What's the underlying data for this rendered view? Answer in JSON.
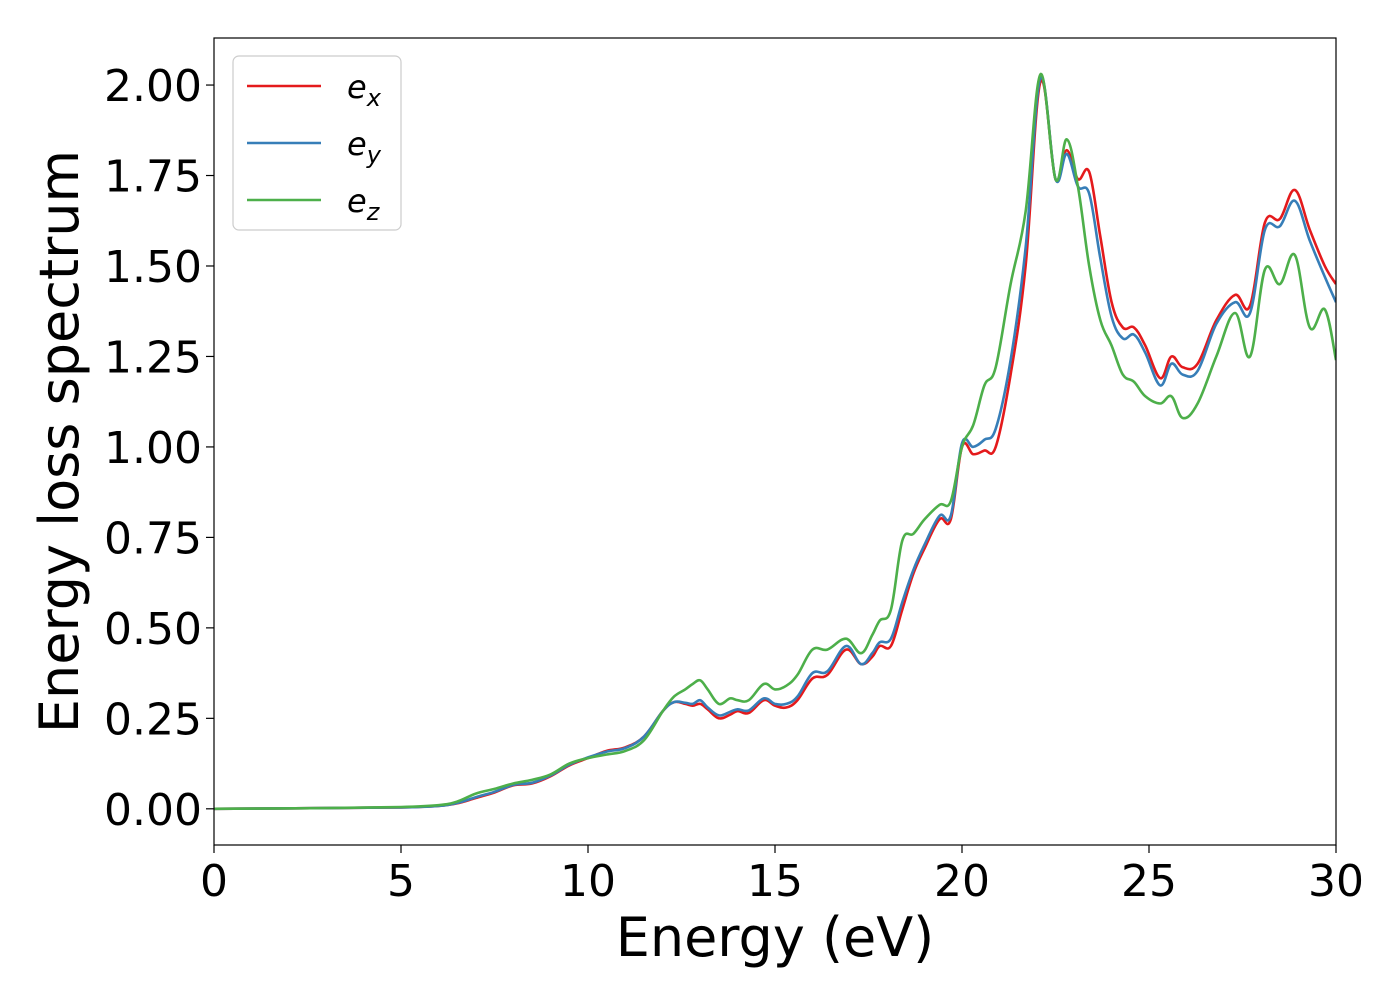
{
  "chart_data": {
    "type": "line",
    "title": "",
    "xlabel": "Energy (eV)",
    "ylabel": "Energy loss spectrum",
    "xlim": [
      0,
      30
    ],
    "ylim": [
      -0.1,
      2.13
    ],
    "xticks": [
      0,
      5,
      10,
      15,
      20,
      25,
      30
    ],
    "xtick_labels": [
      "0",
      "5",
      "10",
      "15",
      "20",
      "25",
      "30"
    ],
    "yticks": [
      0.0,
      0.25,
      0.5,
      0.75,
      1.0,
      1.25,
      1.5,
      1.75,
      2.0
    ],
    "ytick_labels": [
      "0.00",
      "0.25",
      "0.50",
      "0.75",
      "1.00",
      "1.25",
      "1.50",
      "1.75",
      "2.00"
    ],
    "grid": false,
    "legend_position": "upper-left",
    "series": [
      {
        "base": "e",
        "sub": "x",
        "color": "#e41a1c",
        "points": [
          [
            0,
            0
          ],
          [
            3,
            0.002
          ],
          [
            5,
            0.004
          ],
          [
            6,
            0.008
          ],
          [
            6.5,
            0.015
          ],
          [
            7,
            0.03
          ],
          [
            7.5,
            0.045
          ],
          [
            8,
            0.065
          ],
          [
            8.5,
            0.07
          ],
          [
            9,
            0.09
          ],
          [
            9.5,
            0.12
          ],
          [
            10,
            0.14
          ],
          [
            10.5,
            0.16
          ],
          [
            11,
            0.17
          ],
          [
            11.5,
            0.2
          ],
          [
            12,
            0.27
          ],
          [
            12.3,
            0.295
          ],
          [
            12.6,
            0.29
          ],
          [
            12.8,
            0.285
          ],
          [
            13.0,
            0.29
          ],
          [
            13.2,
            0.275
          ],
          [
            13.5,
            0.25
          ],
          [
            13.8,
            0.26
          ],
          [
            14.0,
            0.27
          ],
          [
            14.3,
            0.265
          ],
          [
            14.7,
            0.3
          ],
          [
            15.0,
            0.285
          ],
          [
            15.3,
            0.28
          ],
          [
            15.6,
            0.3
          ],
          [
            16.0,
            0.36
          ],
          [
            16.4,
            0.37
          ],
          [
            16.9,
            0.44
          ],
          [
            17.3,
            0.4
          ],
          [
            17.6,
            0.42
          ],
          [
            17.8,
            0.45
          ],
          [
            18.1,
            0.45
          ],
          [
            18.4,
            0.55
          ],
          [
            18.7,
            0.65
          ],
          [
            19.0,
            0.72
          ],
          [
            19.4,
            0.8
          ],
          [
            19.7,
            0.8
          ],
          [
            20.0,
            1.0
          ],
          [
            20.3,
            0.98
          ],
          [
            20.6,
            0.99
          ],
          [
            20.9,
            1.0
          ],
          [
            21.3,
            1.2
          ],
          [
            21.7,
            1.5
          ],
          [
            22.1,
            2.01
          ],
          [
            22.5,
            1.74
          ],
          [
            22.8,
            1.82
          ],
          [
            23.1,
            1.74
          ],
          [
            23.4,
            1.76
          ],
          [
            23.7,
            1.58
          ],
          [
            24.0,
            1.4
          ],
          [
            24.3,
            1.33
          ],
          [
            24.6,
            1.33
          ],
          [
            24.9,
            1.28
          ],
          [
            25.3,
            1.19
          ],
          [
            25.6,
            1.25
          ],
          [
            25.9,
            1.22
          ],
          [
            26.3,
            1.23
          ],
          [
            26.8,
            1.35
          ],
          [
            27.3,
            1.42
          ],
          [
            27.7,
            1.39
          ],
          [
            28.1,
            1.62
          ],
          [
            28.5,
            1.63
          ],
          [
            28.9,
            1.71
          ],
          [
            29.3,
            1.6
          ],
          [
            29.7,
            1.5
          ],
          [
            30.0,
            1.45
          ]
        ]
      },
      {
        "base": "e",
        "sub": "y",
        "color": "#377eb8",
        "points": [
          [
            0,
            0
          ],
          [
            3,
            0.002
          ],
          [
            5,
            0.004
          ],
          [
            6,
            0.008
          ],
          [
            6.5,
            0.016
          ],
          [
            7,
            0.032
          ],
          [
            7.5,
            0.047
          ],
          [
            8,
            0.066
          ],
          [
            8.5,
            0.072
          ],
          [
            9,
            0.092
          ],
          [
            9.5,
            0.122
          ],
          [
            10,
            0.142
          ],
          [
            10.5,
            0.158
          ],
          [
            11,
            0.168
          ],
          [
            11.5,
            0.2
          ],
          [
            12,
            0.27
          ],
          [
            12.3,
            0.295
          ],
          [
            12.6,
            0.293
          ],
          [
            12.8,
            0.29
          ],
          [
            13.0,
            0.3
          ],
          [
            13.2,
            0.28
          ],
          [
            13.5,
            0.258
          ],
          [
            13.8,
            0.268
          ],
          [
            14.0,
            0.275
          ],
          [
            14.3,
            0.272
          ],
          [
            14.7,
            0.305
          ],
          [
            15.0,
            0.29
          ],
          [
            15.3,
            0.29
          ],
          [
            15.6,
            0.31
          ],
          [
            16.0,
            0.375
          ],
          [
            16.4,
            0.38
          ],
          [
            16.9,
            0.45
          ],
          [
            17.3,
            0.4
          ],
          [
            17.6,
            0.43
          ],
          [
            17.8,
            0.46
          ],
          [
            18.1,
            0.47
          ],
          [
            18.4,
            0.57
          ],
          [
            18.7,
            0.66
          ],
          [
            19.0,
            0.73
          ],
          [
            19.4,
            0.81
          ],
          [
            19.7,
            0.81
          ],
          [
            20.0,
            1.01
          ],
          [
            20.3,
            1.0
          ],
          [
            20.6,
            1.02
          ],
          [
            20.9,
            1.05
          ],
          [
            21.3,
            1.24
          ],
          [
            21.7,
            1.55
          ],
          [
            22.1,
            2.02
          ],
          [
            22.5,
            1.74
          ],
          [
            22.8,
            1.81
          ],
          [
            23.1,
            1.72
          ],
          [
            23.4,
            1.7
          ],
          [
            23.7,
            1.52
          ],
          [
            24.0,
            1.36
          ],
          [
            24.3,
            1.3
          ],
          [
            24.6,
            1.31
          ],
          [
            24.9,
            1.26
          ],
          [
            25.3,
            1.17
          ],
          [
            25.6,
            1.23
          ],
          [
            25.9,
            1.2
          ],
          [
            26.3,
            1.21
          ],
          [
            26.8,
            1.34
          ],
          [
            27.3,
            1.4
          ],
          [
            27.7,
            1.37
          ],
          [
            28.1,
            1.6
          ],
          [
            28.5,
            1.61
          ],
          [
            28.9,
            1.68
          ],
          [
            29.3,
            1.57
          ],
          [
            29.7,
            1.47
          ],
          [
            30.0,
            1.4
          ]
        ]
      },
      {
        "base": "e",
        "sub": "z",
        "color": "#4daf4a",
        "points": [
          [
            0,
            0
          ],
          [
            3,
            0.002
          ],
          [
            5,
            0.005
          ],
          [
            6,
            0.01
          ],
          [
            6.5,
            0.02
          ],
          [
            7,
            0.042
          ],
          [
            7.5,
            0.055
          ],
          [
            8,
            0.07
          ],
          [
            8.5,
            0.08
          ],
          [
            9,
            0.095
          ],
          [
            9.5,
            0.125
          ],
          [
            10,
            0.14
          ],
          [
            10.5,
            0.15
          ],
          [
            11,
            0.16
          ],
          [
            11.5,
            0.19
          ],
          [
            12,
            0.27
          ],
          [
            12.3,
            0.31
          ],
          [
            12.6,
            0.33
          ],
          [
            12.8,
            0.345
          ],
          [
            13.0,
            0.355
          ],
          [
            13.2,
            0.33
          ],
          [
            13.5,
            0.29
          ],
          [
            13.8,
            0.305
          ],
          [
            14.0,
            0.3
          ],
          [
            14.3,
            0.3
          ],
          [
            14.7,
            0.345
          ],
          [
            15.0,
            0.33
          ],
          [
            15.3,
            0.34
          ],
          [
            15.6,
            0.37
          ],
          [
            16.0,
            0.44
          ],
          [
            16.4,
            0.44
          ],
          [
            16.9,
            0.47
          ],
          [
            17.3,
            0.43
          ],
          [
            17.6,
            0.48
          ],
          [
            17.8,
            0.52
          ],
          [
            18.1,
            0.55
          ],
          [
            18.4,
            0.74
          ],
          [
            18.7,
            0.76
          ],
          [
            19.0,
            0.8
          ],
          [
            19.4,
            0.84
          ],
          [
            19.7,
            0.85
          ],
          [
            20.0,
            1.0
          ],
          [
            20.3,
            1.06
          ],
          [
            20.6,
            1.17
          ],
          [
            20.9,
            1.22
          ],
          [
            21.3,
            1.45
          ],
          [
            21.7,
            1.65
          ],
          [
            22.1,
            2.03
          ],
          [
            22.5,
            1.74
          ],
          [
            22.8,
            1.85
          ],
          [
            23.1,
            1.72
          ],
          [
            23.4,
            1.5
          ],
          [
            23.7,
            1.35
          ],
          [
            24.0,
            1.28
          ],
          [
            24.3,
            1.2
          ],
          [
            24.6,
            1.18
          ],
          [
            24.9,
            1.14
          ],
          [
            25.3,
            1.12
          ],
          [
            25.6,
            1.14
          ],
          [
            25.9,
            1.08
          ],
          [
            26.3,
            1.12
          ],
          [
            26.8,
            1.25
          ],
          [
            27.3,
            1.37
          ],
          [
            27.7,
            1.25
          ],
          [
            28.1,
            1.49
          ],
          [
            28.5,
            1.45
          ],
          [
            28.9,
            1.53
          ],
          [
            29.3,
            1.33
          ],
          [
            29.7,
            1.38
          ],
          [
            30.0,
            1.24
          ]
        ]
      }
    ]
  }
}
